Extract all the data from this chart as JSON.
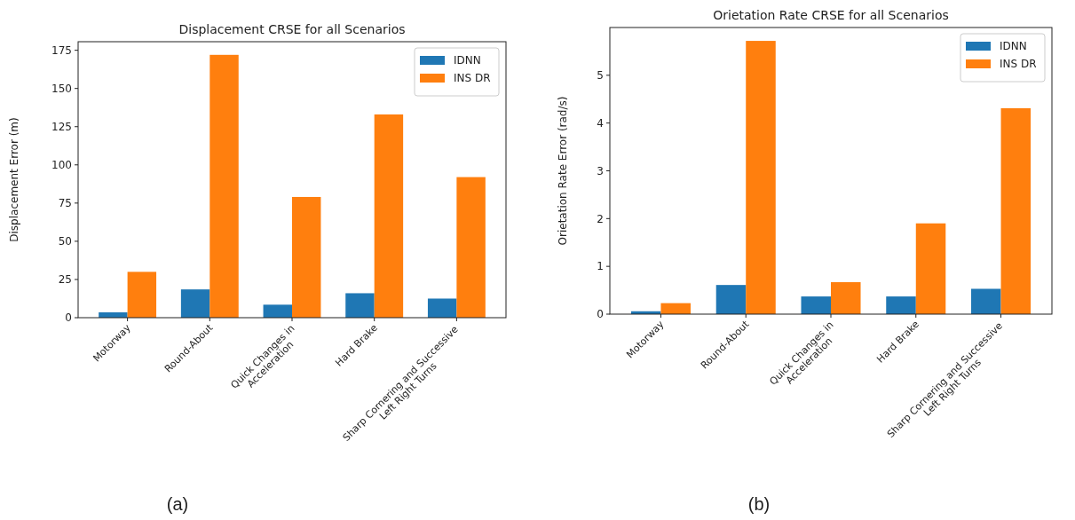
{
  "chart_data": [
    {
      "type": "bar",
      "title": "Displacement CRSE for all Scenarios",
      "ylabel": "Displacement Error (m)",
      "categories": [
        "Motorway",
        "Round-About",
        "Quick Changes in\nAcceleration",
        "Hard Brake",
        "Sharp Cornering and Successive\nLeft Right Turns"
      ],
      "series": [
        {
          "name": "IDNN",
          "color": "#1f77b4",
          "values": [
            3.5,
            18.5,
            8.5,
            16,
            12.5
          ]
        },
        {
          "name": "INS DR",
          "color": "#ff7f0e",
          "values": [
            30,
            172,
            79,
            133,
            92
          ]
        }
      ],
      "ylim": [
        0,
        180.6
      ],
      "yticks": [
        0,
        25,
        50,
        75,
        100,
        125,
        150,
        175
      ],
      "legend": "top right",
      "annotations": [
        "(a)"
      ]
    },
    {
      "type": "bar",
      "title": "Orietation Rate CRSE for all Scenarios",
      "ylabel": "Orietation Rate Error (rad/s)",
      "categories": [
        "Motorway",
        "Round-About",
        "Quick Changes in\nAcceleration",
        "Hard Brake",
        "Sharp Cornering and Successive\nLeft Right Turns"
      ],
      "series": [
        {
          "name": "IDNN",
          "color": "#1f77b4",
          "values": [
            0.06,
            0.61,
            0.37,
            0.37,
            0.53
          ]
        },
        {
          "name": "INS DR",
          "color": "#ff7f0e",
          "values": [
            0.23,
            5.72,
            0.67,
            1.9,
            4.31
          ]
        }
      ],
      "ylim": [
        0,
        6.0
      ],
      "yticks": [
        0,
        1,
        2,
        3,
        4,
        5
      ],
      "legend": "top right",
      "annotations": [
        "(b)"
      ]
    }
  ]
}
